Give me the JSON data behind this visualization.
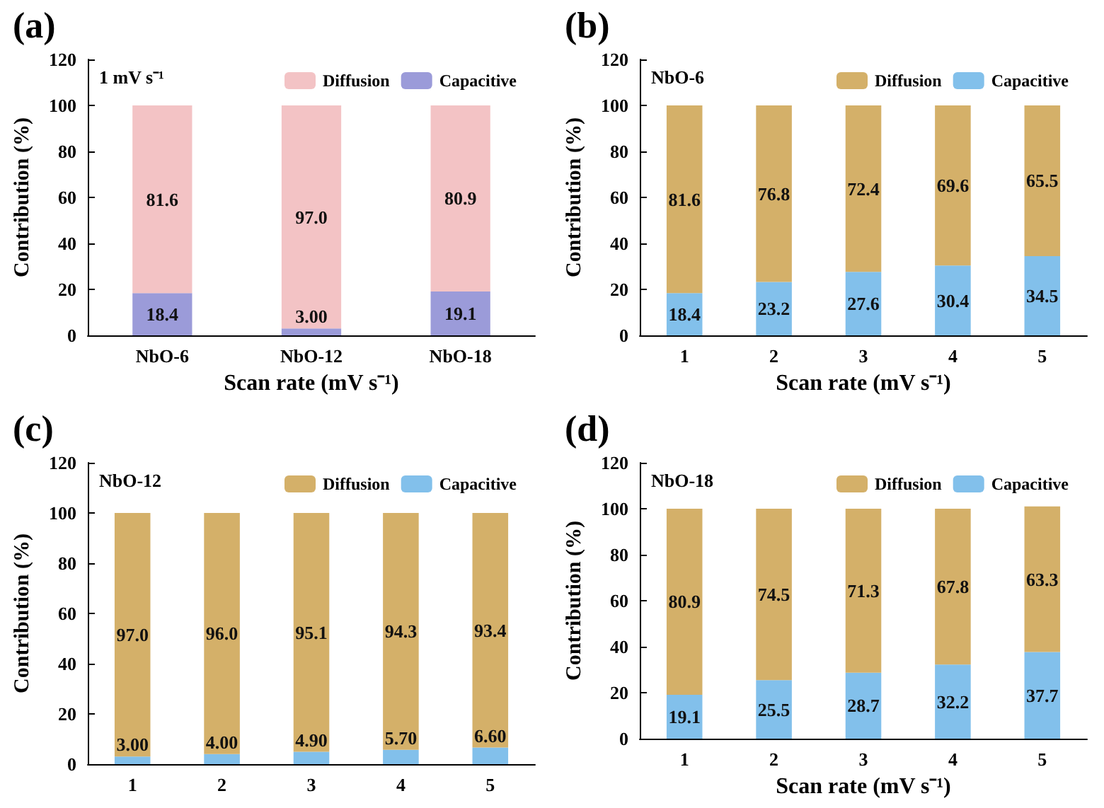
{
  "chart_data": [
    {
      "type": "bar",
      "title": "(a)",
      "xlabel": "Scan rate (mV s⁻¹)",
      "ylabel": "Contribution (%)",
      "annotations": [
        "1 mV s⁻¹"
      ],
      "categories": [
        "NbO-6",
        "NbO-12",
        "NbO-18"
      ],
      "stacked": true,
      "legend": "top right",
      "ylim": [
        0,
        120
      ],
      "yticks": [
        0,
        20,
        40,
        60,
        80,
        100,
        120
      ],
      "series": [
        {
          "name": "Capacitive",
          "color": "#9b9bd9",
          "values": [
            18.4,
            3.0,
            19.1
          ],
          "value_labels": [
            "18.4",
            "3.00",
            "19.1"
          ]
        },
        {
          "name": "Diffusion",
          "color": "#f3c3c5",
          "values": [
            81.6,
            97.0,
            80.9
          ],
          "value_labels": [
            "81.6",
            "97.0",
            "80.9"
          ]
        }
      ]
    },
    {
      "type": "bar",
      "title": "(b)",
      "xlabel": "Scan rate (mV s⁻¹)",
      "ylabel": "Contribution (%)",
      "annotations": [
        "NbO-6"
      ],
      "categories": [
        "1",
        "2",
        "3",
        "4",
        "5"
      ],
      "stacked": true,
      "legend": "top right",
      "ylim": [
        0,
        120
      ],
      "yticks": [
        0,
        20,
        40,
        60,
        80,
        100,
        120
      ],
      "series": [
        {
          "name": "Capacitive",
          "color": "#82c0eb",
          "values": [
            18.4,
            23.2,
            27.6,
            30.4,
            34.5
          ],
          "value_labels": [
            "18.4",
            "23.2",
            "27.6",
            "30.4",
            "34.5"
          ]
        },
        {
          "name": "Diffusion",
          "color": "#d4b069",
          "values": [
            81.6,
            76.8,
            72.4,
            69.6,
            65.5
          ],
          "value_labels": [
            "81.6",
            "76.8",
            "72.4",
            "69.6",
            "65.5"
          ]
        }
      ]
    },
    {
      "type": "bar",
      "title": "(c)",
      "ylabel": "Contribution (%)",
      "annotations": [
        "NbO-12"
      ],
      "categories": [
        "1",
        "2",
        "3",
        "4",
        "5"
      ],
      "stacked": true,
      "legend": "top right",
      "ylim": [
        0,
        120
      ],
      "yticks": [
        0,
        20,
        40,
        60,
        80,
        100,
        120
      ],
      "series": [
        {
          "name": "Capacitive",
          "color": "#82c0eb",
          "values": [
            3.0,
            4.0,
            4.9,
            5.7,
            6.6
          ],
          "value_labels": [
            "3.00",
            "4.00",
            "4.90",
            "5.70",
            "6.60"
          ]
        },
        {
          "name": "Diffusion",
          "color": "#d4b069",
          "values": [
            97.0,
            96.0,
            95.1,
            94.3,
            93.4
          ],
          "value_labels": [
            "97.0",
            "96.0",
            "95.1",
            "94.3",
            "93.4"
          ]
        }
      ]
    },
    {
      "type": "bar",
      "title": "(d)",
      "xlabel": "Scan rate (mV s⁻¹)",
      "ylabel": "Contribution (%)",
      "annotations": [
        "NbO-18"
      ],
      "categories": [
        "1",
        "2",
        "3",
        "4",
        "5"
      ],
      "stacked": true,
      "legend": "top right",
      "ylim": [
        0,
        120
      ],
      "yticks": [
        0,
        20,
        40,
        60,
        80,
        100,
        120
      ],
      "series": [
        {
          "name": "Capacitive",
          "color": "#82c0eb",
          "values": [
            19.1,
            25.5,
            28.7,
            32.2,
            37.7
          ],
          "value_labels": [
            "19.1",
            "25.5",
            "28.7",
            "32.2",
            "37.7"
          ]
        },
        {
          "name": "Diffusion",
          "color": "#d4b069",
          "values": [
            80.9,
            74.5,
            71.3,
            67.8,
            63.3
          ],
          "value_labels": [
            "80.9",
            "74.5",
            "71.3",
            "67.8",
            "63.3"
          ]
        }
      ]
    }
  ]
}
